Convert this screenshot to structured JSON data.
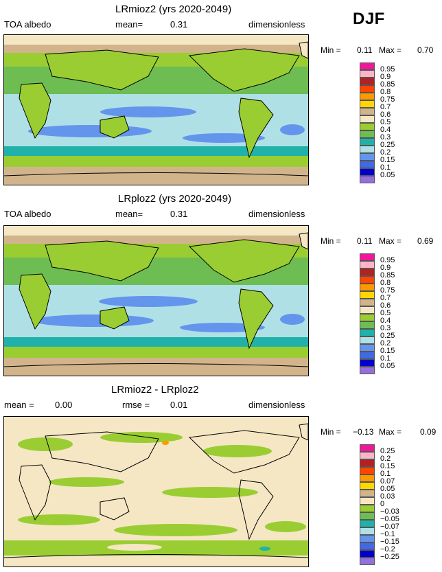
{
  "season": "DJF",
  "chart_data": [
    {
      "type": "heatmap",
      "title": "LRmioz2 (yrs 2020-2049)",
      "left_label": "TOA albedo",
      "center_label": "mean=",
      "center_value": "0.31",
      "right_label": "dimensionless",
      "min_label": "Min =",
      "min_value": "0.11",
      "max_label": "Max =",
      "max_value": "0.70",
      "levels": [
        "0.95",
        "0.9",
        "0.85",
        "0.8",
        "0.75",
        "0.7",
        "0.6",
        "0.5",
        "0.4",
        "0.3",
        "0.25",
        "0.2",
        "0.15",
        "0.1",
        "0.05"
      ],
      "colors": [
        "#f0189a",
        "#ffb5c8",
        "#b22222",
        "#ff4500",
        "#ff9900",
        "#ffd700",
        "#d2b48c",
        "#f5e6c4",
        "#9acd32",
        "#6dbd52",
        "#20b2aa",
        "#afe0e6",
        "#6495ed",
        "#4169e1",
        "#0000cd",
        "#9370db"
      ]
    },
    {
      "type": "heatmap",
      "title": "LRploz2 (yrs 2020-2049)",
      "left_label": "TOA albedo",
      "center_label": "mean=",
      "center_value": "0.31",
      "right_label": "dimensionless",
      "min_label": "Min =",
      "min_value": "0.11",
      "max_label": "Max =",
      "max_value": "0.69",
      "levels": [
        "0.95",
        "0.9",
        "0.85",
        "0.8",
        "0.75",
        "0.7",
        "0.6",
        "0.5",
        "0.4",
        "0.3",
        "0.25",
        "0.2",
        "0.15",
        "0.1",
        "0.05"
      ],
      "colors": [
        "#f0189a",
        "#ffb5c8",
        "#b22222",
        "#ff4500",
        "#ff9900",
        "#ffd700",
        "#d2b48c",
        "#f5e6c4",
        "#9acd32",
        "#6dbd52",
        "#20b2aa",
        "#afe0e6",
        "#6495ed",
        "#4169e1",
        "#0000cd",
        "#9370db"
      ]
    },
    {
      "type": "heatmap",
      "title": "LRmioz2 - LRploz2",
      "left_label": "mean =",
      "left_value": "0.00",
      "center_label": "rmse =",
      "center_value": "0.01",
      "right_label": "dimensionless",
      "min_label": "Min =",
      "min_value": "−0.13",
      "max_label": "Max =",
      "max_value": "0.09",
      "levels": [
        "0.25",
        "0.2",
        "0.15",
        "0.1",
        "0.07",
        "0.05",
        "0.03",
        "0",
        "−0.03",
        "−0.05",
        "−0.07",
        "−0.1",
        "−0.15",
        "−0.2",
        "−0.25"
      ],
      "colors": [
        "#f0189a",
        "#ffb5c8",
        "#b22222",
        "#ff4500",
        "#ff9900",
        "#ffd700",
        "#d2b48c",
        "#f5e6c4",
        "#9acd32",
        "#6dbd52",
        "#20b2aa",
        "#afe0e6",
        "#6495ed",
        "#4169e1",
        "#0000cd",
        "#9370db"
      ]
    }
  ]
}
